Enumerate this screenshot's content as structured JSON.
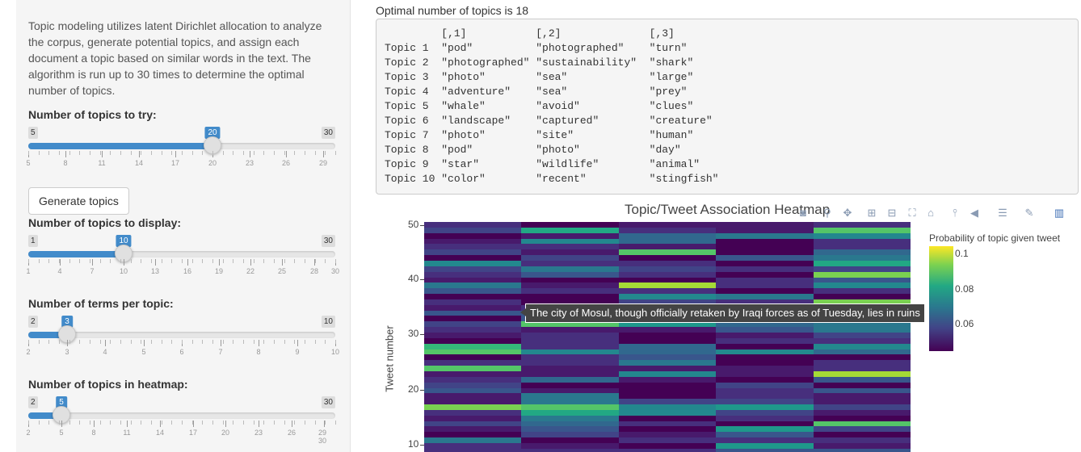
{
  "sidebar": {
    "description": "Topic modeling utilizes latent Dirichlet allocation to analyze the corpus, generate potential topics, and assign each document a topic based on similar words in the text. The algorithm is run up to 30 times to determine the optimal number of topics.",
    "sliders": [
      {
        "label": "Number of topics to try:",
        "min": "5",
        "max": "30",
        "value": "20",
        "fraction": 0.6,
        "ticks": [
          "5",
          "8",
          "11",
          "14",
          "17",
          "20",
          "23",
          "26",
          "29"
        ]
      },
      {
        "label": "Number of topics to display:",
        "min": "1",
        "max": "30",
        "value": "10",
        "fraction": 0.3103,
        "ticks": [
          "1",
          "4",
          "7",
          "10",
          "13",
          "16",
          "19",
          "22",
          "25",
          "28",
          "30"
        ]
      },
      {
        "label": "Number of terms per topic:",
        "min": "2",
        "max": "10",
        "value": "3",
        "fraction": 0.125,
        "ticks": [
          "2",
          "3",
          "4",
          "5",
          "6",
          "7",
          "8",
          "9",
          "10"
        ]
      },
      {
        "label": "Number of topics in heatmap:",
        "min": "2",
        "max": "30",
        "value": "5",
        "fraction": 0.1071,
        "ticks": [
          "2",
          "5",
          "8",
          "11",
          "14",
          "17",
          "20",
          "23",
          "26",
          "29 30"
        ]
      }
    ],
    "generate_button": "Generate topics"
  },
  "main": {
    "optimal_text": "Optimal number of topics is 18",
    "table_header": [
      "[,1]",
      "[,2]",
      "[,3]"
    ],
    "table_rows": [
      [
        "Topic 1",
        "\"pod\"",
        "\"photographed\"",
        "\"turn\""
      ],
      [
        "Topic 2",
        "\"photographed\"",
        "\"sustainability\"",
        "\"shark\""
      ],
      [
        "Topic 3",
        "\"photo\"",
        "\"sea\"",
        "\"large\""
      ],
      [
        "Topic 4",
        "\"adventure\"",
        "\"sea\"",
        "\"prey\""
      ],
      [
        "Topic 5",
        "\"whale\"",
        "\"avoid\"",
        "\"clues\""
      ],
      [
        "Topic 6",
        "\"landscape\"",
        "\"captured\"",
        "\"creature\""
      ],
      [
        "Topic 7",
        "\"photo\"",
        "\"site\"",
        "\"human\""
      ],
      [
        "Topic 8",
        "\"pod\"",
        "\"photo\"",
        "\"day\""
      ],
      [
        "Topic 9",
        "\"star\"",
        "\"wildlife\"",
        "\"animal\""
      ],
      [
        "Topic 10",
        "\"color\"",
        "\"recent\"",
        "\"stingfish\""
      ]
    ]
  },
  "heatmap": {
    "title": "Topic/Tweet Association Heatmap",
    "ylabel": "Tweet number",
    "yticks": [
      "50",
      "40",
      "30",
      "20",
      "10"
    ],
    "colorbar_title": "Probability of topic given tweet",
    "colorbar_labels": [
      "0.1",
      "0.08",
      "0.06"
    ],
    "tooltip": "The city of Mosul, though officially retaken by Iraqi forces as of Tuesday, lies in ruins",
    "modebar_icons": [
      "camera-icon",
      "zoom-icon",
      "pan-icon",
      "zoom-in-icon",
      "zoom-out-icon",
      "autoscale-icon",
      "home-icon",
      "spike-icon",
      "hover-closest-icon",
      "hover-compare-icon",
      "edit-icon",
      "plotly-logo-icon"
    ]
  }
}
